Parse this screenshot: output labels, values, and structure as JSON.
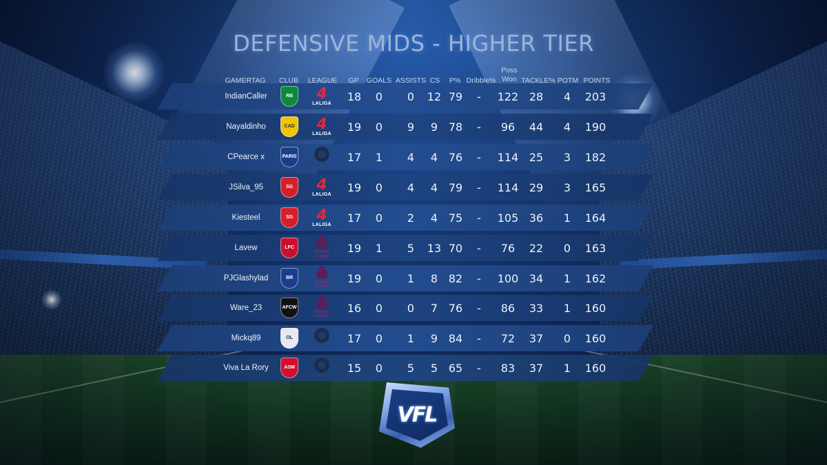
{
  "title": "DEFENSIVE MIDS - HIGHER TIER",
  "headers": {
    "gamertag": "GAMERTAG",
    "club": "CLUB",
    "league": "LEAGUE",
    "gp": "GP",
    "goals": "GOALS",
    "assists": "ASSISTS",
    "cs": "CS",
    "pass_pct": "P%",
    "dribble_pct": "Dribble%",
    "poss_won_line1": "Poss",
    "poss_won_line2": "Won",
    "tackle_pct": "TACKLE%",
    "potm": "POTM",
    "points": "POINTS"
  },
  "rows": [
    {
      "gamertag": "IndianCaller",
      "club": "Real Betis",
      "club_color": "#0b8a3c",
      "club_abbr": "RB",
      "league": "LALIGA",
      "gp": "18",
      "goals": "0",
      "assists": "0",
      "cs": "12",
      "pass_pct": "79",
      "dribble_pct": "-",
      "poss_won": "122",
      "tackle_pct": "28",
      "potm": "4",
      "points": "203"
    },
    {
      "gamertag": "Nayaldinho",
      "club": "Cadiz",
      "club_color": "#f2c300",
      "club_abbr": "CAD",
      "league": "LALIGA",
      "gp": "19",
      "goals": "0",
      "assists": "9",
      "cs": "9",
      "pass_pct": "78",
      "dribble_pct": "-",
      "poss_won": "96",
      "tackle_pct": "44",
      "potm": "4",
      "points": "190"
    },
    {
      "gamertag": "CPearce x",
      "club": "Paris Saint-Germain",
      "club_color": "#1a3e8c",
      "club_abbr": "PARIS",
      "league": "LIGUE 1",
      "gp": "17",
      "goals": "1",
      "assists": "4",
      "cs": "4",
      "pass_pct": "76",
      "dribble_pct": "-",
      "poss_won": "114",
      "tackle_pct": "25",
      "potm": "3",
      "points": "182"
    },
    {
      "gamertag": "JSilva_95",
      "club": "Sporting Gijon",
      "club_color": "#d51f2a",
      "club_abbr": "SG",
      "league": "LALIGA",
      "gp": "19",
      "goals": "0",
      "assists": "4",
      "cs": "4",
      "pass_pct": "79",
      "dribble_pct": "-",
      "poss_won": "114",
      "tackle_pct": "29",
      "potm": "3",
      "points": "165"
    },
    {
      "gamertag": "Kiesteel",
      "club": "Sporting Gijon",
      "club_color": "#d51f2a",
      "club_abbr": "SG",
      "league": "LALIGA",
      "gp": "17",
      "goals": "0",
      "assists": "2",
      "cs": "4",
      "pass_pct": "75",
      "dribble_pct": "-",
      "poss_won": "105",
      "tackle_pct": "36",
      "potm": "1",
      "points": "164"
    },
    {
      "gamertag": "Lavew",
      "club": "Liverpool",
      "club_color": "#c8102e",
      "club_abbr": "LFC",
      "league": "Premier League",
      "gp": "19",
      "goals": "1",
      "assists": "5",
      "cs": "13",
      "pass_pct": "70",
      "dribble_pct": "-",
      "poss_won": "76",
      "tackle_pct": "22",
      "potm": "0",
      "points": "163"
    },
    {
      "gamertag": "PJGlashylad",
      "club": "Bristol Rovers",
      "club_color": "#1c3d8f",
      "club_abbr": "BR",
      "league": "Premier League",
      "gp": "19",
      "goals": "0",
      "assists": "1",
      "cs": "8",
      "pass_pct": "82",
      "dribble_pct": "-",
      "poss_won": "100",
      "tackle_pct": "34",
      "potm": "1",
      "points": "162"
    },
    {
      "gamertag": "Ware_23",
      "club": "AFC Wimbledon",
      "club_color": "#111111",
      "club_abbr": "AFCW",
      "league": "Premier League",
      "gp": "16",
      "goals": "0",
      "assists": "0",
      "cs": "7",
      "pass_pct": "76",
      "dribble_pct": "-",
      "poss_won": "86",
      "tackle_pct": "33",
      "potm": "1",
      "points": "160"
    },
    {
      "gamertag": "Mickq89",
      "club": "Olympique Lyonnais",
      "club_color": "#e8e8f0",
      "club_abbr": "OL",
      "league": "LIGUE 1",
      "gp": "17",
      "goals": "0",
      "assists": "1",
      "cs": "9",
      "pass_pct": "84",
      "dribble_pct": "-",
      "poss_won": "72",
      "tackle_pct": "37",
      "potm": "0",
      "points": "160"
    },
    {
      "gamertag": "Viva La Rory",
      "club": "AS Monaco",
      "club_color": "#d0102c",
      "club_abbr": "ASM",
      "league": "LIGUE 1",
      "gp": "15",
      "goals": "0",
      "assists": "5",
      "cs": "5",
      "pass_pct": "65",
      "dribble_pct": "-",
      "poss_won": "83",
      "tackle_pct": "37",
      "potm": "1",
      "points": "160"
    }
  ],
  "laliga_badge": {
    "numeral": "4",
    "label": "LALIGA",
    "color": "#e7263b"
  },
  "pl_badge": {
    "label": "Premier League",
    "color": "#5a1f58"
  },
  "logo": {
    "text": "VFL"
  }
}
